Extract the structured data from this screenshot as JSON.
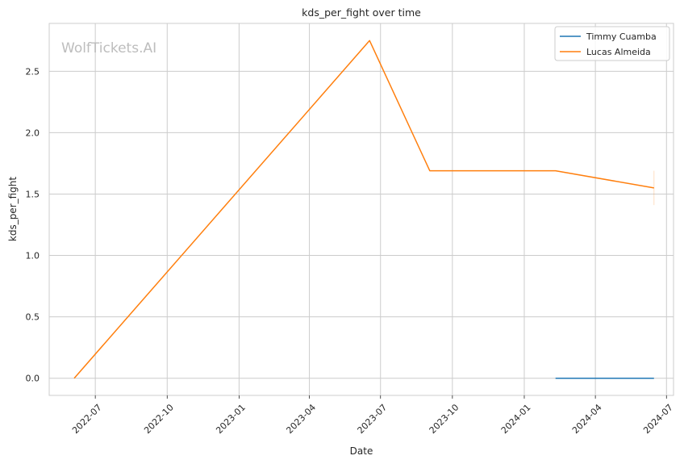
{
  "chart_data": {
    "type": "line",
    "title": "kds_per_fight over time",
    "xlabel": "Date",
    "ylabel": "kds_per_fight",
    "watermark": "WolfTickets.AI",
    "x_range": [
      "2022-05-03",
      "2024-07-10"
    ],
    "ylim": [
      -0.14,
      2.89
    ],
    "x_ticks": [
      {
        "date": "2022-07-01",
        "label": "2022-07"
      },
      {
        "date": "2022-10-01",
        "label": "2022-10"
      },
      {
        "date": "2023-01-01",
        "label": "2023-01"
      },
      {
        "date": "2023-04-01",
        "label": "2023-04"
      },
      {
        "date": "2023-07-01",
        "label": "2023-07"
      },
      {
        "date": "2023-10-01",
        "label": "2023-10"
      },
      {
        "date": "2024-01-01",
        "label": "2024-01"
      },
      {
        "date": "2024-04-01",
        "label": "2024-04"
      },
      {
        "date": "2024-07-01",
        "label": "2024-07"
      }
    ],
    "y_ticks": [
      {
        "value": 0.0,
        "label": "0.0"
      },
      {
        "value": 0.5,
        "label": "0.5"
      },
      {
        "value": 1.0,
        "label": "1.0"
      },
      {
        "value": 1.5,
        "label": "1.5"
      },
      {
        "value": 2.0,
        "label": "2.0"
      },
      {
        "value": 2.5,
        "label": "2.5"
      }
    ],
    "grid": true,
    "legend_position": "top-right",
    "series": [
      {
        "name": "Timmy Cuamba",
        "color": "#1f77b4",
        "points": [
          {
            "x": "2024-02-10",
            "y": 0.0
          },
          {
            "x": "2024-06-15",
            "y": 0.0
          }
        ]
      },
      {
        "name": "Lucas Almeida",
        "color": "#ff7f0e",
        "points": [
          {
            "x": "2022-06-04",
            "y": 0.0
          },
          {
            "x": "2023-06-17",
            "y": 2.75
          },
          {
            "x": "2023-09-02",
            "y": 1.69
          },
          {
            "x": "2024-02-10",
            "y": 1.69
          },
          {
            "x": "2024-06-15",
            "y": 1.55
          }
        ],
        "error_band": {
          "x": "2024-06-15",
          "low": 1.41,
          "high": 1.69
        }
      }
    ]
  }
}
